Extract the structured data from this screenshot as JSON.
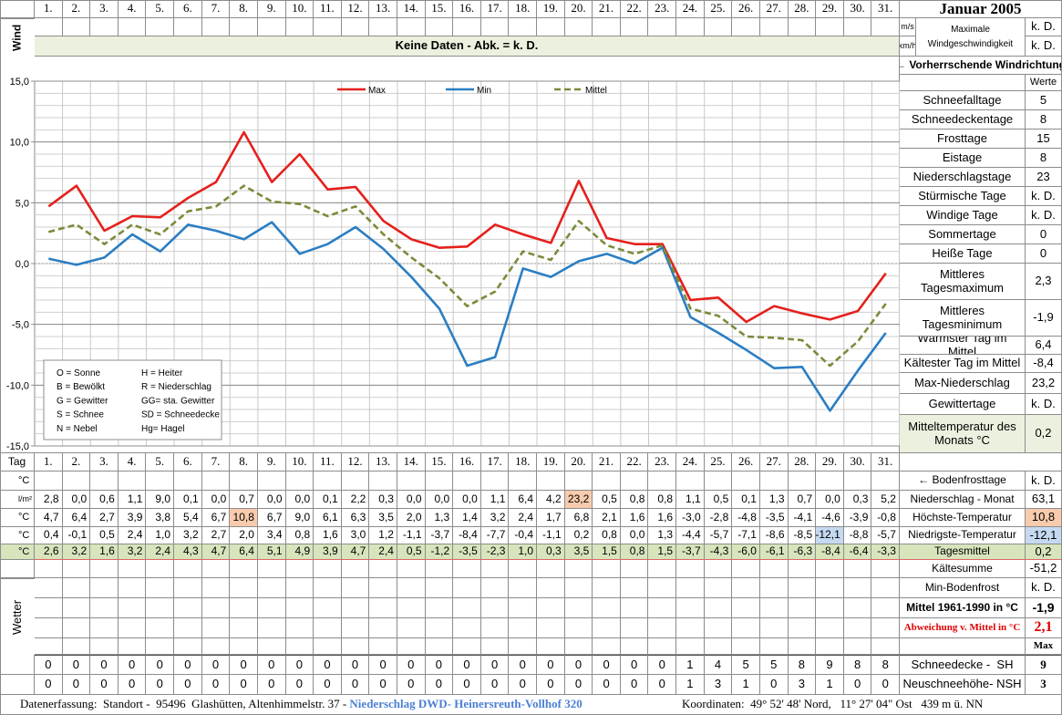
{
  "header": {
    "title": "Januar 2005",
    "wind_label": "Wind",
    "wind_units": [
      "m/s",
      "km/h"
    ],
    "wind_max": [
      "Maximale",
      "Windgeschwindigkeit"
    ],
    "wind_values": [
      "k. D.",
      "k. D."
    ],
    "no_data": "Keine Daten - Abk. = k. D.",
    "wind_direction": "← Vorherrschende Windrichtung"
  },
  "chart_data": {
    "type": "line",
    "categories": [
      "1.",
      "2.",
      "3.",
      "4.",
      "5.",
      "6.",
      "7.",
      "8.",
      "9.",
      "10.",
      "11.",
      "12.",
      "13.",
      "14.",
      "15.",
      "16.",
      "17.",
      "18.",
      "19.",
      "20.",
      "21.",
      "22.",
      "23.",
      "24.",
      "25.",
      "26.",
      "27.",
      "28.",
      "29.",
      "30.",
      "31."
    ],
    "ylim": [
      -15,
      15
    ],
    "yticks": [
      {
        "value": 15,
        "label": "15,0"
      },
      {
        "value": 10,
        "label": "10,0"
      },
      {
        "value": 5,
        "label": "5,0"
      },
      {
        "value": 0,
        "label": "0,0"
      },
      {
        "value": -5,
        "label": "-5,0"
      },
      {
        "value": -10,
        "label": "-10,0"
      },
      {
        "value": -15,
        "label": "-15,0"
      }
    ],
    "grid": true,
    "legend": "top",
    "series": [
      {
        "name": "Max",
        "color": "#e5201c",
        "dashed": false,
        "values": [
          4.7,
          6.4,
          2.7,
          3.9,
          3.8,
          5.4,
          6.7,
          10.8,
          6.7,
          9.0,
          6.1,
          6.3,
          3.5,
          2.0,
          1.3,
          1.4,
          3.2,
          2.4,
          1.7,
          6.8,
          2.1,
          1.6,
          1.6,
          -3.0,
          -2.8,
          -4.8,
          -3.5,
          -4.1,
          -4.6,
          -3.9,
          -0.8
        ],
        "value_labels": [
          "4,7",
          "6,4",
          "2,7",
          "3,9",
          "3,8",
          "5,4",
          "6,7",
          "10,8",
          "6,7",
          "9,0",
          "6,1",
          "6,3",
          "3,5",
          "2,0",
          "1,3",
          "1,4",
          "3,2",
          "2,4",
          "1,7",
          "6,8",
          "2,1",
          "1,6",
          "1,6",
          "-3,0",
          "-2,8",
          "-4,8",
          "-3,5",
          "-4,1",
          "-4,6",
          "-3,9",
          "-0,8"
        ]
      },
      {
        "name": "Min",
        "color": "#2a7ec3",
        "dashed": false,
        "values": [
          0.4,
          -0.1,
          0.5,
          2.4,
          1.0,
          3.2,
          2.7,
          2.0,
          3.4,
          0.8,
          1.6,
          3.0,
          1.2,
          -1.1,
          -3.7,
          -8.4,
          -7.7,
          -0.4,
          -1.1,
          0.2,
          0.8,
          0.0,
          1.3,
          -4.4,
          -5.7,
          -7.1,
          -8.6,
          -8.5,
          -12.1,
          -8.8,
          -5.7
        ],
        "value_labels": [
          "0,4",
          "-0,1",
          "0,5",
          "2,4",
          "1,0",
          "3,2",
          "2,7",
          "2,0",
          "3,4",
          "0,8",
          "1,6",
          "3,0",
          "1,2",
          "-1,1",
          "-3,7",
          "-8,4",
          "-7,7",
          "-0,4",
          "-1,1",
          "0,2",
          "0,8",
          "0,0",
          "1,3",
          "-4,4",
          "-5,7",
          "-7,1",
          "-8,6",
          "-8,5",
          "-12,1",
          "-8,8",
          "-5,7"
        ]
      },
      {
        "name": "Mittel",
        "color": "#7b8b3a",
        "dashed": true,
        "values": [
          2.6,
          3.2,
          1.6,
          3.2,
          2.4,
          4.3,
          4.7,
          6.4,
          5.1,
          4.9,
          3.9,
          4.7,
          2.4,
          0.5,
          -1.2,
          -3.5,
          -2.3,
          1.0,
          0.3,
          3.5,
          1.5,
          0.8,
          1.5,
          -3.7,
          -4.3,
          -6.0,
          -6.1,
          -6.3,
          -8.4,
          -6.4,
          -3.3
        ],
        "value_labels": [
          "2,6",
          "3,2",
          "1,6",
          "3,2",
          "2,4",
          "4,3",
          "4,7",
          "6,4",
          "5,1",
          "4,9",
          "3,9",
          "4,7",
          "2,4",
          "0,5",
          "-1,2",
          "-3,5",
          "-2,3",
          "1,0",
          "0,3",
          "3,5",
          "1,5",
          "0,8",
          "1,5",
          "-3,7",
          "-4,3",
          "-6,0",
          "-6,1",
          "-6,3",
          "-8,4",
          "-6,4",
          "-3,3"
        ]
      }
    ]
  },
  "weather_legend": [
    "O = Sonne",
    "H = Heiter",
    "B = Bewölkt",
    "R = Niederschlag",
    "G = Gewitter",
    "GG= sta. Gewitter",
    "S = Schnee",
    "SD = Schneedecke",
    "N = Nebel",
    "Hg= Hagel"
  ],
  "stats": {
    "header": "Werte",
    "rows": [
      {
        "label": "Schneefalltage",
        "value": "5"
      },
      {
        "label": "Schneedeckentage",
        "value": "8"
      },
      {
        "label": "Frosttage",
        "value": "15"
      },
      {
        "label": "Eistage",
        "value": "8"
      },
      {
        "label": "Niederschlagstage",
        "value": "23"
      },
      {
        "label": "Stürmische Tage",
        "value": "k. D."
      },
      {
        "label": "Windige Tage",
        "value": "k. D."
      },
      {
        "label": "Sommertage",
        "value": "0"
      },
      {
        "label": "Heiße Tage",
        "value": "0"
      },
      {
        "label": "Mittleres Tagesmaximum",
        "value": "2,3"
      },
      {
        "label": "Mittleres Tagesminimum",
        "value": "-1,9"
      },
      {
        "label": "Wärmster Tag im Mittel",
        "value": "6,4"
      },
      {
        "label": "Kältester Tag im Mittel",
        "value": "-8,4"
      },
      {
        "label": "Max-Niederschlag",
        "value": "23,2"
      },
      {
        "label": "Gewittertage",
        "value": "k. D."
      },
      {
        "label": "Mitteltemperatur des Monats °C",
        "value": "0,2"
      }
    ]
  },
  "daily": {
    "tag": "Tag",
    "units": [
      "°C",
      "l/m²",
      "°C",
      "°C",
      "°C"
    ],
    "precipitation": [
      "2,8",
      "0,0",
      "0,6",
      "1,1",
      "9,0",
      "0,1",
      "0,0",
      "0,7",
      "0,0",
      "0,0",
      "0,1",
      "2,2",
      "0,3",
      "0,0",
      "0,0",
      "0,0",
      "1,1",
      "6,4",
      "4,2",
      "23,2",
      "0,5",
      "0,8",
      "0,8",
      "1,1",
      "0,5",
      "0,1",
      "1,3",
      "0,7",
      "0,0",
      "0,3",
      "5,2"
    ],
    "weather": "Wetter",
    "snow_depth": [
      0,
      0,
      0,
      0,
      0,
      0,
      0,
      0,
      0,
      0,
      0,
      0,
      0,
      0,
      0,
      0,
      0,
      0,
      0,
      0,
      0,
      0,
      0,
      1,
      4,
      5,
      5,
      8,
      9,
      8,
      8
    ],
    "new_snow": [
      0,
      0,
      0,
      0,
      0,
      0,
      0,
      0,
      0,
      0,
      0,
      0,
      0,
      0,
      0,
      0,
      0,
      0,
      0,
      0,
      0,
      0,
      0,
      1,
      3,
      1,
      0,
      3,
      1,
      0,
      0
    ]
  },
  "summary": {
    "rows": [
      {
        "label": "← Bodenfrosttage",
        "value": "k. D."
      },
      {
        "label": "Niederschlag - Monat",
        "value": "63,1"
      },
      {
        "label": "Höchste-Temperatur",
        "value": "10,8"
      },
      {
        "label": "Niedrigste-Temperatur",
        "value": "-12,1"
      },
      {
        "label": "Tagesmittel",
        "value": "0,2"
      },
      {
        "label": "Kältesumme",
        "value": "-51,2"
      },
      {
        "label": "Min-Bodenfrost",
        "value": "k. D."
      },
      {
        "label": "Mittel 1961-1990 in °C",
        "value": "-1,9"
      },
      {
        "label": "Abweichung v. Mittel in °C",
        "value": "2,1"
      }
    ],
    "max_header": "Max",
    "snow": [
      {
        "label": "Schneedecke -  SH",
        "value": "9"
      },
      {
        "label": "Neuschneehöhe- NSH",
        "value": "3"
      }
    ]
  },
  "footer": {
    "left": "Datenerfassung:  Standort -  95496  Glashütten, Altenhimmelstr. 37 - ",
    "station": "Niederschlag DWD- Heinersreuth-Vollhof 320",
    "right": "Koordinaten:  49° 52' 48' Nord,   11° 27' 04\" Ost   439 m ü. NN"
  }
}
